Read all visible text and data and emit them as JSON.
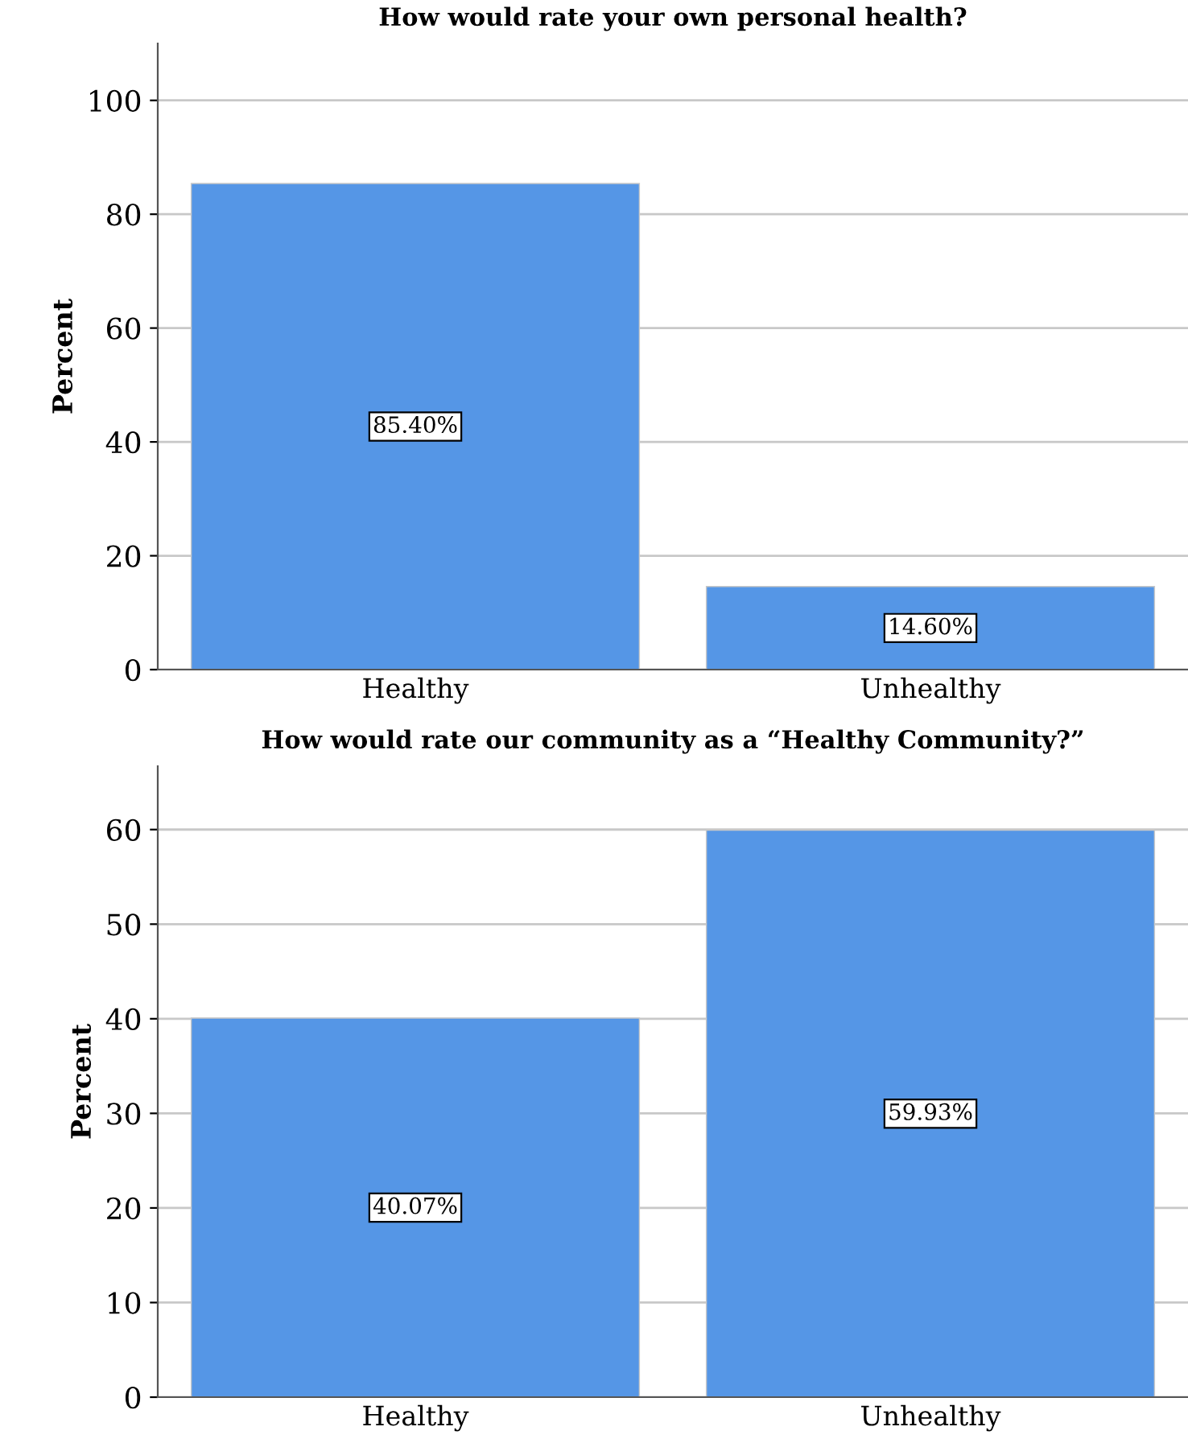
{
  "chart_data": [
    {
      "type": "bar",
      "title": "How would rate your own personal health?",
      "ylabel": "Percent",
      "categories": [
        "Healthy",
        "Unhealthy"
      ],
      "values": [
        85.4,
        14.6
      ],
      "value_labels": [
        "85.40%",
        "14.60%"
      ],
      "color": "#5596e6",
      "ylim": [
        0,
        110
      ],
      "yticks": [
        0,
        20,
        40,
        60,
        80,
        100
      ],
      "grid": "y",
      "legend": false
    },
    {
      "type": "bar",
      "title": "How would rate our community as a “Healthy Community?”",
      "ylabel": "Percent",
      "categories": [
        "Healthy",
        "Unhealthy"
      ],
      "values": [
        40.07,
        59.93
      ],
      "value_labels": [
        "40.07%",
        "59.93%"
      ],
      "color": "#5596e6",
      "ylim": [
        0,
        66.7
      ],
      "yticks": [
        0,
        10,
        20,
        30,
        40,
        50,
        60
      ],
      "grid": "y",
      "legend": false
    }
  ]
}
